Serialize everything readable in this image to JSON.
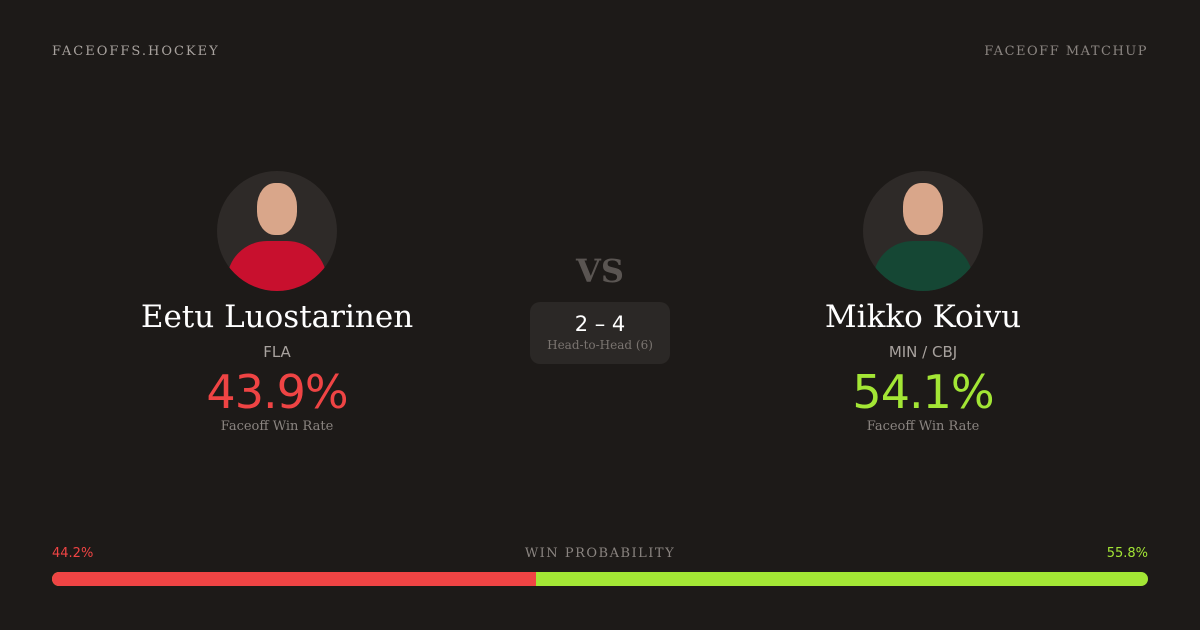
{
  "header": {
    "brand": "FACEOFFS.HOCKEY",
    "page_type": "FACEOFF MATCHUP"
  },
  "players": [
    {
      "name": "Eetu Luostarinen",
      "team": "FLA",
      "win_rate": "43.9%",
      "win_rate_label": "Faceoff Win Rate",
      "color": "#ef4444",
      "jersey_color": "#c8102e"
    },
    {
      "name": "Mikko Koivu",
      "team": "MIN / CBJ",
      "win_rate": "54.1%",
      "win_rate_label": "Faceoff Win Rate",
      "color": "#a3e635",
      "jersey_color": "#154734"
    }
  ],
  "vs": "VS",
  "head_to_head": {
    "score": "2 – 4",
    "label": "Head-to-Head (6)"
  },
  "win_probability": {
    "label": "WIN PROBABILITY",
    "left": "44.2%",
    "right": "55.8%",
    "left_fraction": 0.442
  }
}
